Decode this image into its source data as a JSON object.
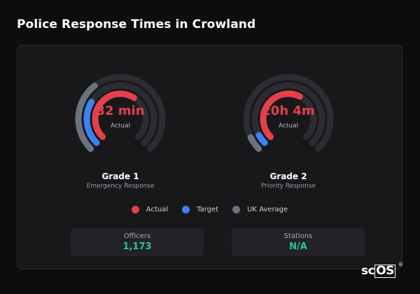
{
  "page": {
    "title": "Police Response Times in Crowland"
  },
  "colors": {
    "actual": "#e5404a",
    "target": "#3b82f6",
    "uk_average": "#6b7280",
    "track": "#2c2c31",
    "stat_value": "#2ec4a0"
  },
  "gauges": [
    {
      "value_label": "32 min",
      "sub_label": "Actual",
      "grade": "Grade 1",
      "description": "Emergency Response",
      "actual_fraction": 0.62,
      "target_fraction": 0.28,
      "uk_average_fraction": 0.36
    },
    {
      "value_label": "20h 4m",
      "sub_label": "Actual",
      "grade": "Grade 2",
      "description": "Priority Response",
      "actual_fraction": 0.6,
      "target_fraction": 0.06,
      "uk_average_fraction": 0.07
    }
  ],
  "legend": [
    {
      "label": "Actual",
      "color": "#e5404a"
    },
    {
      "label": "Target",
      "color": "#3b82f6"
    },
    {
      "label": "UK Average",
      "color": "#6b7280"
    }
  ],
  "stats": [
    {
      "label": "Officers",
      "value": "1,173"
    },
    {
      "label": "Stations",
      "value": "N/A"
    }
  ],
  "brand": {
    "text_plain": "sc",
    "text_boxed": "OS",
    "mark": "®"
  }
}
